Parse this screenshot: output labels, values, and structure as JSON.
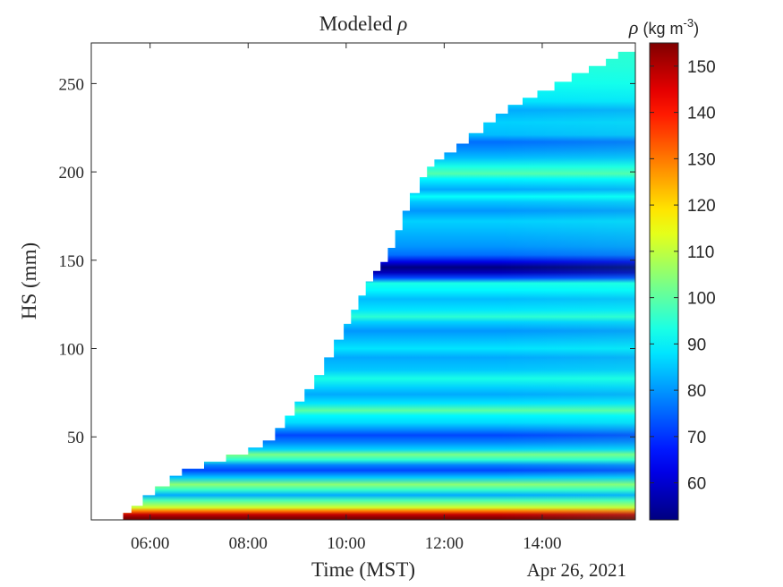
{
  "chart_data": {
    "type": "heatmap",
    "title": "Modeled ρ",
    "title_text": "Modeled ",
    "title_symbol": "ρ",
    "xlabel": "Time (MST)",
    "ylabel": "HS (mm)",
    "date_label": "Apr 26, 2021",
    "x_unit": "hour",
    "xlim": [
      4.8,
      15.9
    ],
    "ylim": [
      3,
      273
    ],
    "xticks": [
      {
        "value": 6,
        "label": "06:00"
      },
      {
        "value": 8,
        "label": "08:00"
      },
      {
        "value": 10,
        "label": "10:00"
      },
      {
        "value": 12,
        "label": "12:00"
      },
      {
        "value": 14,
        "label": "14:00"
      }
    ],
    "yticks": [
      {
        "value": 50,
        "label": "50"
      },
      {
        "value": 100,
        "label": "100"
      },
      {
        "value": 150,
        "label": "150"
      },
      {
        "value": 200,
        "label": "200"
      },
      {
        "value": 250,
        "label": "250"
      }
    ],
    "colorbar": {
      "label_symbol": "ρ",
      "label_units": "(kg m",
      "label_exp": "-3",
      "label_close": ")",
      "colormap": "jet",
      "clim": [
        52,
        155
      ],
      "ticks": [
        {
          "value": 60,
          "label": "60"
        },
        {
          "value": 70,
          "label": "70"
        },
        {
          "value": 80,
          "label": "80"
        },
        {
          "value": 90,
          "label": "90"
        },
        {
          "value": 100,
          "label": "100"
        },
        {
          "value": 110,
          "label": "110"
        },
        {
          "value": 120,
          "label": "120"
        },
        {
          "value": 130,
          "label": "130"
        },
        {
          "value": 140,
          "label": "140"
        },
        {
          "value": 150,
          "label": "150"
        }
      ]
    },
    "snow_height_envelope": [
      [
        5.45,
        7
      ],
      [
        5.62,
        11
      ],
      [
        5.85,
        17
      ],
      [
        6.1,
        22
      ],
      [
        6.4,
        28
      ],
      [
        6.65,
        32
      ],
      [
        7.1,
        36
      ],
      [
        7.55,
        40
      ],
      [
        8.0,
        44
      ],
      [
        8.3,
        48
      ],
      [
        8.55,
        55
      ],
      [
        8.75,
        62
      ],
      [
        8.95,
        70
      ],
      [
        9.15,
        77
      ],
      [
        9.35,
        85
      ],
      [
        9.55,
        95
      ],
      [
        9.75,
        105
      ],
      [
        9.95,
        114
      ],
      [
        10.1,
        122
      ],
      [
        10.25,
        130
      ],
      [
        10.4,
        138
      ],
      [
        10.55,
        144
      ],
      [
        10.7,
        149
      ],
      [
        10.85,
        157
      ],
      [
        11.0,
        167
      ],
      [
        11.15,
        178
      ],
      [
        11.3,
        188
      ],
      [
        11.5,
        197
      ],
      [
        11.65,
        203
      ],
      [
        11.8,
        207
      ],
      [
        12.0,
        211
      ],
      [
        12.25,
        216
      ],
      [
        12.5,
        222
      ],
      [
        12.8,
        228
      ],
      [
        13.05,
        233
      ],
      [
        13.3,
        238
      ],
      [
        13.6,
        242
      ],
      [
        13.9,
        246
      ],
      [
        14.25,
        251
      ],
      [
        14.6,
        256
      ],
      [
        14.95,
        260
      ],
      [
        15.3,
        264
      ],
      [
        15.55,
        268
      ],
      [
        15.9,
        270
      ]
    ],
    "density_profile_by_height": [
      [
        4,
        155
      ],
      [
        6,
        148
      ],
      [
        8,
        130
      ],
      [
        10,
        112
      ],
      [
        14,
        98
      ],
      [
        17,
        82
      ],
      [
        20,
        96
      ],
      [
        23,
        105
      ],
      [
        27,
        85
      ],
      [
        31,
        72
      ],
      [
        34,
        78
      ],
      [
        37,
        95
      ],
      [
        40,
        103
      ],
      [
        43,
        86
      ],
      [
        47,
        78
      ],
      [
        51,
        72
      ],
      [
        54,
        79
      ],
      [
        58,
        87
      ],
      [
        62,
        90
      ],
      [
        65,
        100
      ],
      [
        69,
        88
      ],
      [
        74,
        82
      ],
      [
        78,
        86
      ],
      [
        83,
        93
      ],
      [
        88,
        85
      ],
      [
        95,
        82
      ],
      [
        100,
        88
      ],
      [
        105,
        84
      ],
      [
        110,
        80
      ],
      [
        115,
        86
      ],
      [
        118,
        95
      ],
      [
        122,
        88
      ],
      [
        128,
        84
      ],
      [
        133,
        90
      ],
      [
        137,
        93
      ],
      [
        140,
        72
      ],
      [
        143,
        58
      ],
      [
        146,
        52
      ],
      [
        149,
        62
      ],
      [
        153,
        76
      ],
      [
        158,
        80
      ],
      [
        165,
        83
      ],
      [
        172,
        86
      ],
      [
        178,
        80
      ],
      [
        183,
        85
      ],
      [
        186,
        91
      ],
      [
        190,
        82
      ],
      [
        196,
        90
      ],
      [
        199,
        99
      ],
      [
        203,
        93
      ],
      [
        208,
        84
      ],
      [
        212,
        80
      ],
      [
        217,
        76
      ],
      [
        221,
        84
      ],
      [
        228,
        86
      ],
      [
        235,
        82
      ],
      [
        240,
        88
      ],
      [
        250,
        92
      ],
      [
        260,
        94
      ],
      [
        270,
        95
      ]
    ]
  }
}
